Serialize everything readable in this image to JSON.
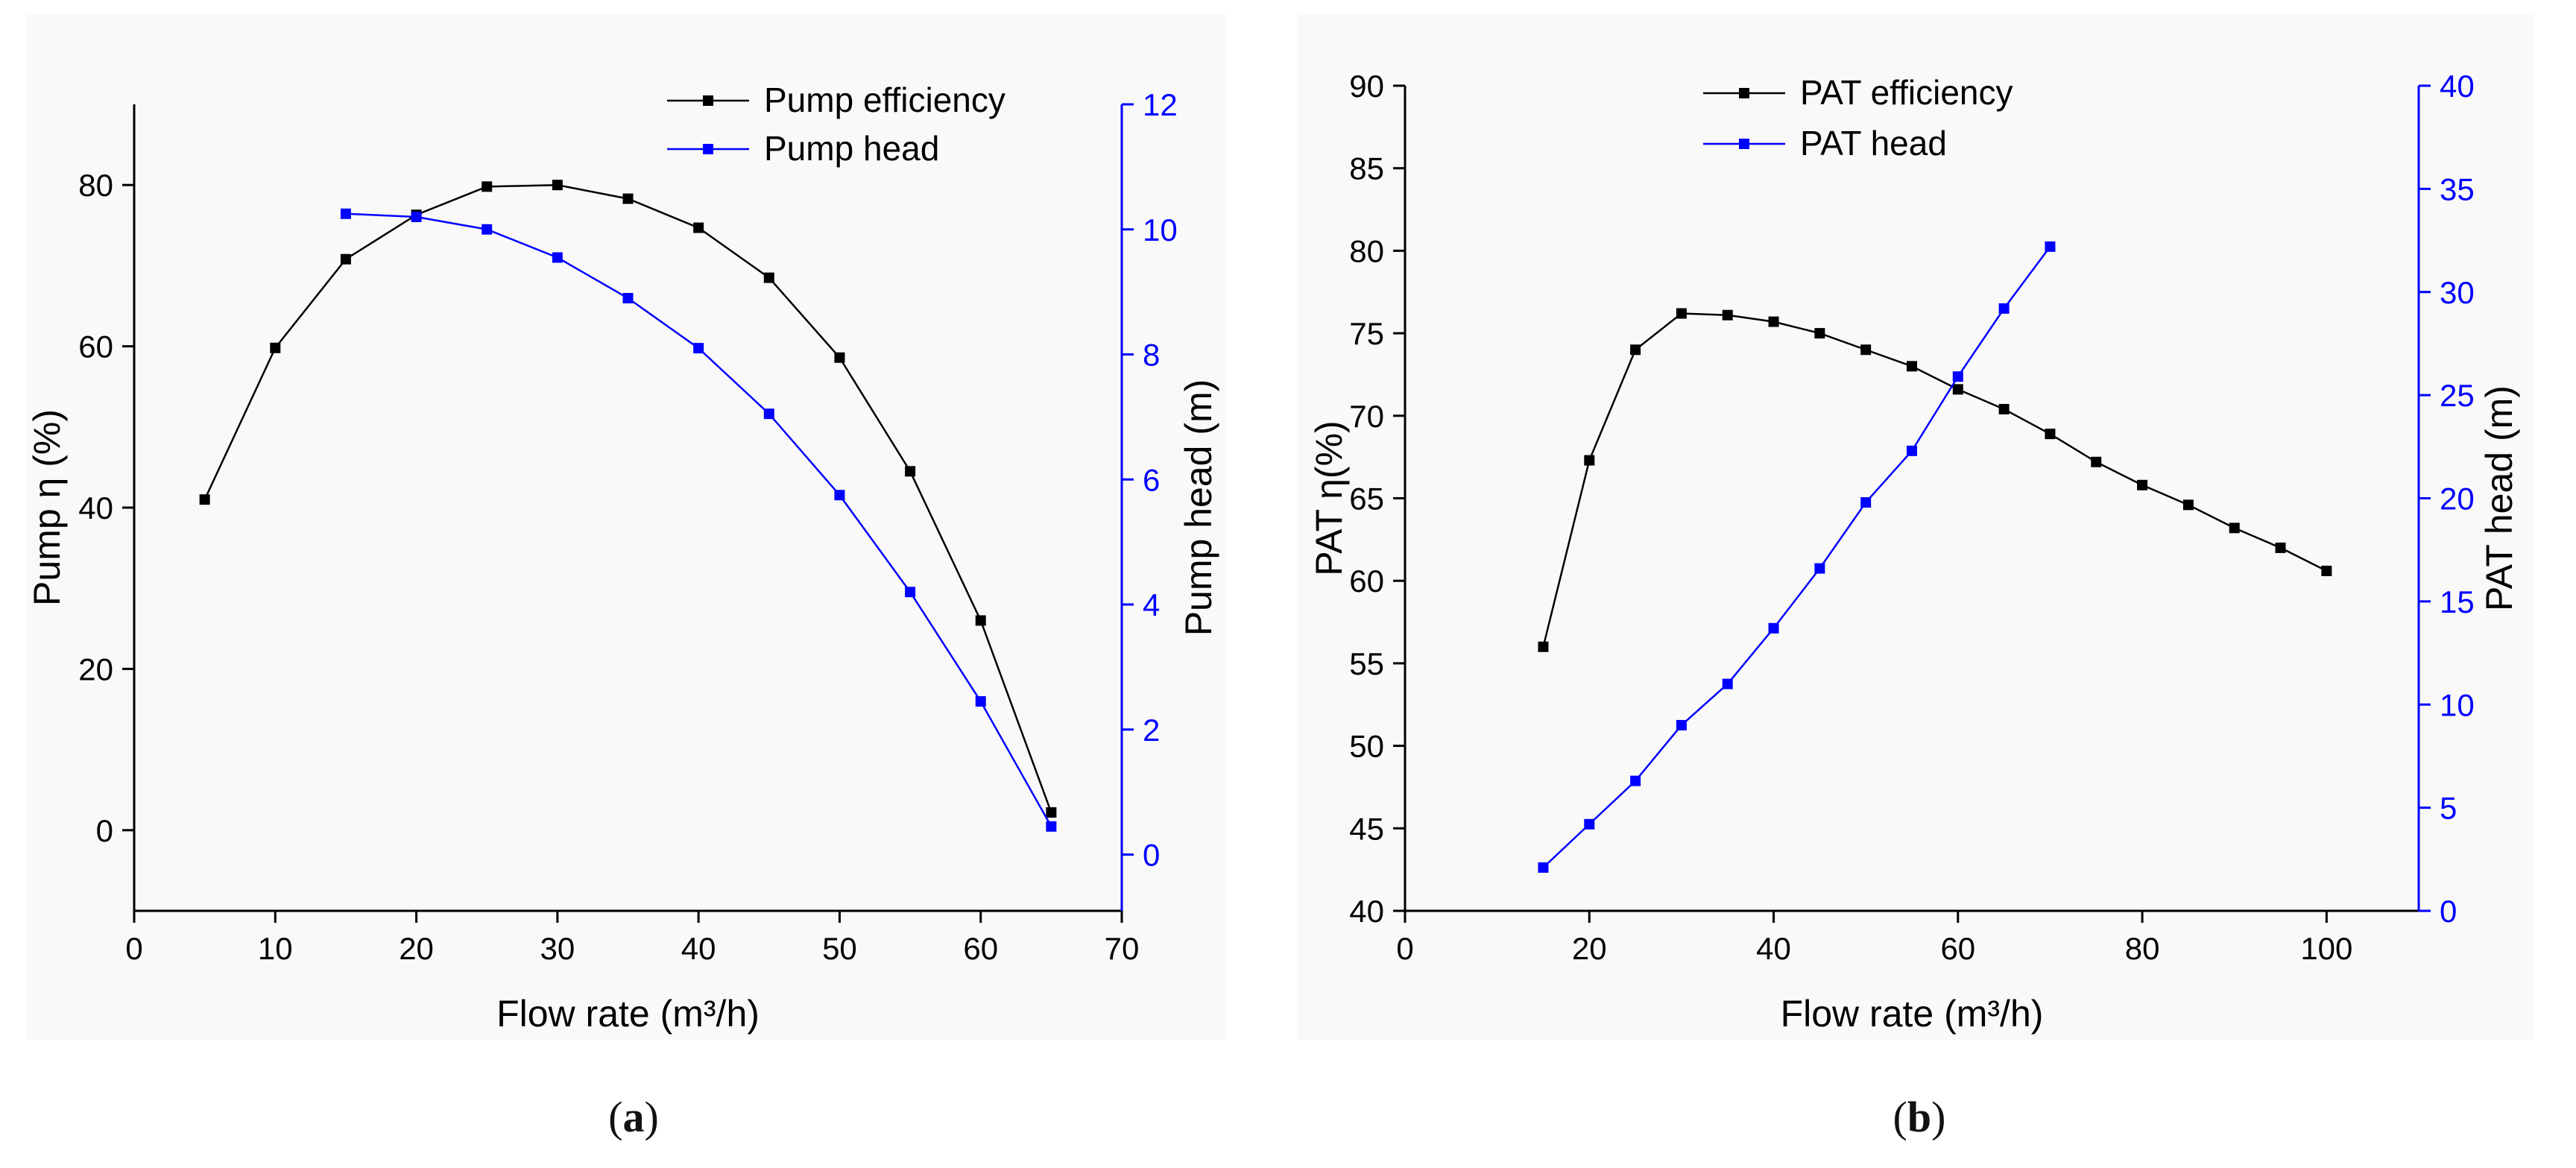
{
  "chart_data": [
    {
      "panel": "a",
      "type": "line",
      "xlabel": "Flow rate (m³/h)",
      "ylabel": "Pump η (%)",
      "y2label": "Pump head (m)",
      "xlim": [
        0,
        70
      ],
      "ylim": [
        -10,
        90
      ],
      "y2lim": [
        -0.9,
        12
      ],
      "xticks": [
        0,
        10,
        20,
        30,
        40,
        50,
        60,
        70
      ],
      "yticks": [
        0,
        20,
        40,
        60,
        80
      ],
      "y2ticks": [
        0,
        2,
        4,
        6,
        8,
        10,
        12
      ],
      "legend_position": "top-right",
      "series": [
        {
          "name": "Pump efficiency",
          "axis": "left",
          "color": "#000000",
          "x": [
            5,
            10,
            15,
            20,
            25,
            30,
            35,
            40,
            45,
            50,
            55,
            60,
            65
          ],
          "y": [
            41,
            59.8,
            70.8,
            76.3,
            79.8,
            80.0,
            78.3,
            74.7,
            68.5,
            58.6,
            44.5,
            26.0,
            2.2
          ]
        },
        {
          "name": "Pump head",
          "axis": "right",
          "color": "#0000ff",
          "x": [
            15,
            20,
            25,
            30,
            35,
            40,
            45,
            50,
            55,
            60,
            65
          ],
          "y": [
            10.25,
            10.2,
            10.0,
            9.55,
            8.9,
            8.1,
            7.05,
            5.75,
            4.2,
            2.45,
            0.45
          ]
        }
      ]
    },
    {
      "panel": "b",
      "type": "line",
      "xlabel": "Flow rate (m³/h)",
      "ylabel": "PAT η(%)",
      "y2label": "PAT head (m)",
      "xlim": [
        0,
        110
      ],
      "ylim": [
        40,
        90
      ],
      "y2lim": [
        0,
        40
      ],
      "xticks": [
        0,
        20,
        40,
        60,
        80,
        100
      ],
      "yticks": [
        40,
        45,
        50,
        55,
        60,
        65,
        70,
        75,
        80,
        85,
        90
      ],
      "y2ticks": [
        0,
        5,
        10,
        15,
        20,
        25,
        30,
        35,
        40
      ],
      "legend_position": "top-left",
      "series": [
        {
          "name": "PAT efficiency",
          "axis": "left",
          "color": "#000000",
          "x": [
            15,
            20,
            25,
            30,
            35,
            40,
            45,
            50,
            55,
            60,
            65,
            70,
            75,
            80,
            85,
            90,
            95,
            100
          ],
          "y": [
            56.0,
            67.3,
            74.0,
            76.2,
            76.1,
            75.7,
            75.0,
            74.0,
            73.0,
            71.6,
            70.4,
            68.9,
            67.2,
            65.8,
            64.6,
            63.2,
            62.0,
            60.6
          ]
        },
        {
          "name": "PAT head",
          "axis": "right",
          "color": "#0000ff",
          "x": [
            15,
            20,
            25,
            30,
            35,
            40,
            45,
            50,
            55,
            60,
            65,
            70
          ],
          "y": [
            2.1,
            4.2,
            6.3,
            9.0,
            11.0,
            13.7,
            16.6,
            19.8,
            22.3,
            25.9,
            29.2,
            32.2
          ]
        }
      ]
    }
  ],
  "captions": {
    "a": "a",
    "b": "b"
  }
}
